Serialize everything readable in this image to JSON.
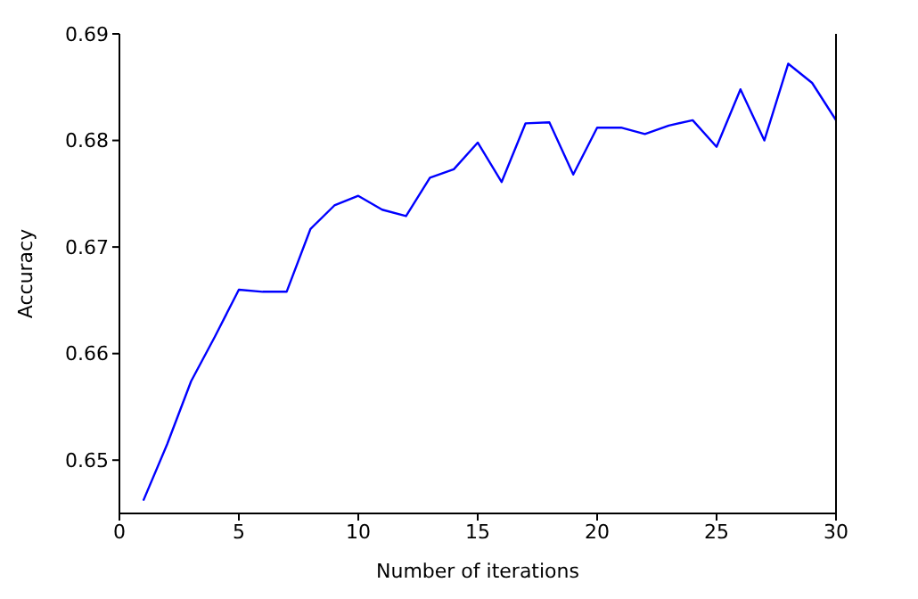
{
  "chart_data": {
    "type": "line",
    "xlabel": "Number of iterations",
    "ylabel": "Accuracy",
    "x": [
      1,
      2,
      3,
      4,
      5,
      6,
      7,
      8,
      9,
      10,
      11,
      12,
      13,
      14,
      15,
      16,
      17,
      18,
      19,
      20,
      21,
      22,
      23,
      24,
      25,
      26,
      27,
      28,
      29,
      30
    ],
    "series": [
      {
        "color": "#0000ff",
        "values": [
          0.6462,
          0.6515,
          0.6574,
          0.6616,
          0.666,
          0.6658,
          0.6658,
          0.6717,
          0.6739,
          0.6748,
          0.6735,
          0.6729,
          0.6765,
          0.6773,
          0.6798,
          0.6761,
          0.6816,
          0.6817,
          0.6768,
          0.6812,
          0.6812,
          0.6806,
          0.6814,
          0.6819,
          0.6794,
          0.6848,
          0.68,
          0.6872,
          0.6854,
          0.6819
        ]
      }
    ],
    "xlim": [
      0,
      30
    ],
    "xticks": [
      0,
      5,
      10,
      15,
      20,
      25,
      30
    ],
    "ylim": [
      0.645,
      0.69
    ],
    "yticks": [
      0.65,
      0.66,
      0.67,
      0.68,
      0.69
    ],
    "grid": false,
    "legend": false,
    "marker": "none",
    "line_style": "solid"
  }
}
